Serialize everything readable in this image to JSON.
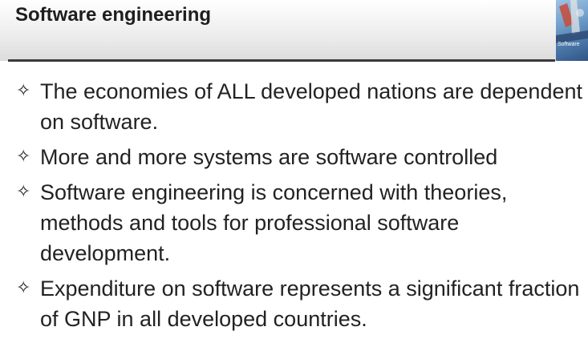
{
  "slide": {
    "title": "Software engineering",
    "thumbnail_label": "Software",
    "bullet_icon": "four-pointed-star-icon",
    "bullets": [
      {
        "text": "The economies of ALL developed nations are dependent on software."
      },
      {
        "text": "More and more systems are software controlled"
      },
      {
        "text": "Software engineering is concerned with theories, methods and tools for professional software development."
      },
      {
        "text": "Expenditure on software represents a significant fraction of GNP in all developed countries."
      }
    ]
  }
}
